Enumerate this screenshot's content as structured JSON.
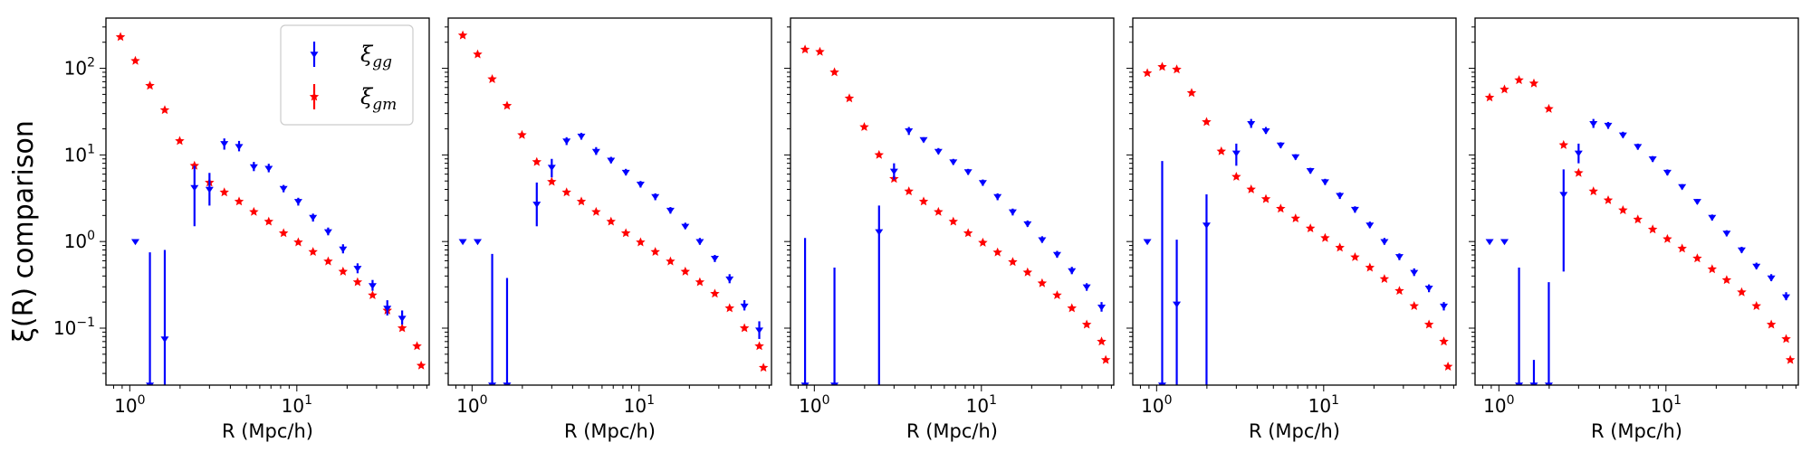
{
  "ylabel": "ξ(R) comparison",
  "colors": {
    "gg": "#0000ff",
    "gm": "#ff0000"
  },
  "chart_data": {
    "type": "scatter",
    "xscale": "log",
    "yscale": "log",
    "xlim": [
      0.72,
      62
    ],
    "ylim": [
      0.022,
      380
    ],
    "xticks": [
      {
        "value": 1,
        "base": "10",
        "exp": "0"
      },
      {
        "value": 10,
        "base": "10",
        "exp": "1"
      }
    ],
    "yticks": [
      {
        "value": 0.1,
        "base": "10",
        "exp": "−1"
      },
      {
        "value": 1,
        "base": "10",
        "exp": "0"
      },
      {
        "value": 10,
        "base": "10",
        "exp": "1"
      },
      {
        "value": 100,
        "base": "10",
        "exp": "2"
      }
    ],
    "xlabel": "R  (Mpc/h)",
    "legend": {
      "position": "upper-right of first panel",
      "entries": [
        {
          "key": "gg",
          "sym": "ξ",
          "sub": "gg"
        },
        {
          "key": "gm",
          "sym": "ξ",
          "sub": "gm"
        }
      ]
    },
    "panels": [
      {
        "xlabel": "R  (Mpc/h)",
        "gm": [
          [
            0.88,
            230
          ],
          [
            1.08,
            122
          ],
          [
            1.32,
            63
          ],
          [
            1.62,
            33
          ],
          [
            1.99,
            14.5
          ],
          [
            2.44,
            7.5
          ],
          [
            3.0,
            4.8
          ],
          [
            3.68,
            3.7
          ],
          [
            4.51,
            2.9
          ],
          [
            5.53,
            2.2
          ],
          [
            6.79,
            1.7
          ],
          [
            8.33,
            1.25
          ],
          [
            10.2,
            0.98
          ],
          [
            12.5,
            0.76
          ],
          [
            15.4,
            0.59
          ],
          [
            18.9,
            0.45
          ],
          [
            23.1,
            0.34
          ],
          [
            28.4,
            0.24
          ],
          [
            34.8,
            0.16
          ],
          [
            42.7,
            0.1
          ],
          [
            52.4,
            0.062
          ],
          [
            55.5,
            0.037
          ]
        ],
        "gg": [
          [
            1.08,
            1.0,
            1.0,
            1.0
          ],
          [
            1.32,
            0.022,
            0.022,
            0.75
          ],
          [
            1.62,
            0.075,
            0.022,
            0.8
          ],
          [
            2.44,
            4.2,
            1.5,
            7.5
          ],
          [
            3.0,
            4.0,
            2.6,
            6.2
          ],
          [
            3.68,
            13.5,
            11.5,
            15.5
          ],
          [
            4.51,
            12.5,
            11,
            14.5
          ],
          [
            5.53,
            7.3,
            6.5,
            8.3
          ],
          [
            6.79,
            7.0,
            6.3,
            7.9
          ],
          [
            8.33,
            4.1,
            3.7,
            4.5
          ],
          [
            10.2,
            2.9,
            2.6,
            3.2
          ],
          [
            12.5,
            1.9,
            1.7,
            2.1
          ],
          [
            15.4,
            1.3,
            1.18,
            1.45
          ],
          [
            18.9,
            0.82,
            0.73,
            0.93
          ],
          [
            23.1,
            0.49,
            0.43,
            0.56
          ],
          [
            28.4,
            0.31,
            0.27,
            0.36
          ],
          [
            34.8,
            0.17,
            0.14,
            0.21
          ],
          [
            42.7,
            0.13,
            0.11,
            0.16
          ]
        ]
      },
      {
        "xlabel": "R  (Mpc/h)",
        "gm": [
          [
            0.88,
            240
          ],
          [
            1.08,
            145
          ],
          [
            1.32,
            75
          ],
          [
            1.62,
            37
          ],
          [
            1.99,
            17
          ],
          [
            2.44,
            8.3
          ],
          [
            3.0,
            4.9
          ],
          [
            3.68,
            3.7
          ],
          [
            4.51,
            2.9
          ],
          [
            5.53,
            2.2
          ],
          [
            6.79,
            1.7
          ],
          [
            8.33,
            1.25
          ],
          [
            10.2,
            0.98
          ],
          [
            12.5,
            0.76
          ],
          [
            15.4,
            0.59
          ],
          [
            18.9,
            0.45
          ],
          [
            23.1,
            0.34
          ],
          [
            28.4,
            0.25
          ],
          [
            34.8,
            0.17
          ],
          [
            42.7,
            0.1
          ],
          [
            52.4,
            0.062
          ],
          [
            55.5,
            0.035
          ]
        ],
        "gg": [
          [
            0.88,
            1.0,
            1.0,
            1.0
          ],
          [
            1.08,
            1.0,
            1.0,
            1.0
          ],
          [
            1.32,
            0.022,
            0.022,
            0.72
          ],
          [
            1.62,
            0.022,
            0.022,
            0.38
          ],
          [
            2.44,
            2.7,
            1.5,
            4.8
          ],
          [
            3.0,
            7.2,
            5.5,
            9.0
          ],
          [
            3.68,
            14.5,
            13,
            16
          ],
          [
            4.51,
            16.5,
            15,
            18
          ],
          [
            5.53,
            11,
            10,
            12.3
          ],
          [
            6.79,
            8.7,
            8,
            9.5
          ],
          [
            8.33,
            6.3,
            5.8,
            6.9
          ],
          [
            10.2,
            4.6,
            4.2,
            5.0
          ],
          [
            12.5,
            3.3,
            3.0,
            3.6
          ],
          [
            15.4,
            2.3,
            2.1,
            2.5
          ],
          [
            18.9,
            1.5,
            1.4,
            1.65
          ],
          [
            23.1,
            1.0,
            0.92,
            1.1
          ],
          [
            28.4,
            0.64,
            0.58,
            0.7
          ],
          [
            34.8,
            0.37,
            0.33,
            0.42
          ],
          [
            42.7,
            0.18,
            0.16,
            0.21
          ],
          [
            52.4,
            0.095,
            0.075,
            0.12
          ]
        ]
      },
      {
        "xlabel": "R  (Mpc/h)",
        "gm": [
          [
            0.88,
            165
          ],
          [
            1.08,
            155
          ],
          [
            1.32,
            90
          ],
          [
            1.62,
            45
          ],
          [
            1.99,
            21
          ],
          [
            2.44,
            10
          ],
          [
            3.0,
            5.3
          ],
          [
            3.68,
            3.8
          ],
          [
            4.51,
            2.9
          ],
          [
            5.53,
            2.2
          ],
          [
            6.79,
            1.7
          ],
          [
            8.33,
            1.25
          ],
          [
            10.2,
            0.97
          ],
          [
            12.5,
            0.75
          ],
          [
            15.4,
            0.58
          ],
          [
            18.9,
            0.44
          ],
          [
            23.1,
            0.33
          ],
          [
            28.4,
            0.24
          ],
          [
            34.8,
            0.17
          ],
          [
            42.7,
            0.11
          ],
          [
            52.4,
            0.07
          ],
          [
            55.5,
            0.043
          ]
        ],
        "gg": [
          [
            0.88,
            0.022,
            0.022,
            1.1
          ],
          [
            1.32,
            0.022,
            0.022,
            0.5
          ],
          [
            2.44,
            1.3,
            0.022,
            2.6
          ],
          [
            3.0,
            6.5,
            5.2,
            8.0
          ],
          [
            3.68,
            19,
            17,
            21
          ],
          [
            4.51,
            15,
            14,
            16
          ],
          [
            5.53,
            11,
            10.2,
            12
          ],
          [
            6.79,
            8.3,
            7.7,
            9.0
          ],
          [
            8.33,
            6.4,
            5.9,
            6.9
          ],
          [
            10.2,
            4.8,
            4.4,
            5.2
          ],
          [
            12.5,
            3.3,
            3.0,
            3.6
          ],
          [
            15.4,
            2.2,
            2.0,
            2.4
          ],
          [
            18.9,
            1.6,
            1.48,
            1.75
          ],
          [
            23.1,
            1.05,
            0.97,
            1.15
          ],
          [
            28.4,
            0.71,
            0.65,
            0.78
          ],
          [
            34.8,
            0.46,
            0.42,
            0.51
          ],
          [
            42.7,
            0.3,
            0.27,
            0.33
          ],
          [
            52.4,
            0.175,
            0.155,
            0.2
          ]
        ]
      },
      {
        "xlabel": "R  (Mpc/h)",
        "gm": [
          [
            0.88,
            88
          ],
          [
            1.08,
            104
          ],
          [
            1.32,
            97
          ],
          [
            1.62,
            52
          ],
          [
            1.99,
            24
          ],
          [
            2.44,
            11
          ],
          [
            3.0,
            5.6
          ],
          [
            3.68,
            4.0
          ],
          [
            4.51,
            3.1
          ],
          [
            5.53,
            2.4
          ],
          [
            6.79,
            1.85
          ],
          [
            8.33,
            1.42
          ],
          [
            10.2,
            1.1
          ],
          [
            12.5,
            0.85
          ],
          [
            15.4,
            0.66
          ],
          [
            18.9,
            0.5
          ],
          [
            23.1,
            0.37
          ],
          [
            28.4,
            0.27
          ],
          [
            34.8,
            0.18
          ],
          [
            42.7,
            0.11
          ],
          [
            52.4,
            0.07
          ],
          [
            55.5,
            0.036
          ]
        ],
        "gg": [
          [
            0.88,
            1.0,
            1.0,
            1.0
          ],
          [
            1.08,
            0.022,
            0.022,
            8.5
          ],
          [
            1.32,
            0.19,
            0.022,
            1.05
          ],
          [
            1.99,
            1.55,
            0.022,
            3.5
          ],
          [
            3.0,
            10.5,
            7.5,
            13.5
          ],
          [
            3.68,
            23,
            20.5,
            26
          ],
          [
            4.51,
            19,
            17.5,
            21
          ],
          [
            5.53,
            13,
            12,
            14
          ],
          [
            6.79,
            9.5,
            8.8,
            10.2
          ],
          [
            8.33,
            6.6,
            6.1,
            7.1
          ],
          [
            10.2,
            4.9,
            4.5,
            5.3
          ],
          [
            12.5,
            3.4,
            3.1,
            3.7
          ],
          [
            15.4,
            2.35,
            2.15,
            2.55
          ],
          [
            18.9,
            1.55,
            1.43,
            1.7
          ],
          [
            23.1,
            1.0,
            0.92,
            1.1
          ],
          [
            28.4,
            0.67,
            0.61,
            0.73
          ],
          [
            34.8,
            0.44,
            0.4,
            0.49
          ],
          [
            42.7,
            0.29,
            0.26,
            0.32
          ],
          [
            52.4,
            0.18,
            0.16,
            0.2
          ]
        ]
      },
      {
        "xlabel": "R  (Mpc/h)",
        "gm": [
          [
            0.88,
            46
          ],
          [
            1.08,
            57
          ],
          [
            1.32,
            73
          ],
          [
            1.62,
            67
          ],
          [
            1.99,
            34
          ],
          [
            2.44,
            13
          ],
          [
            3.0,
            6.2
          ],
          [
            3.68,
            3.8
          ],
          [
            4.51,
            3.0
          ],
          [
            5.53,
            2.3
          ],
          [
            6.79,
            1.8
          ],
          [
            8.33,
            1.38
          ],
          [
            10.2,
            1.07
          ],
          [
            12.5,
            0.83
          ],
          [
            15.4,
            0.64
          ],
          [
            18.9,
            0.48
          ],
          [
            23.1,
            0.36
          ],
          [
            28.4,
            0.26
          ],
          [
            34.8,
            0.18
          ],
          [
            42.7,
            0.11
          ],
          [
            52.4,
            0.075
          ],
          [
            55.5,
            0.043
          ]
        ],
        "gg": [
          [
            0.88,
            1.0,
            1.0,
            1.0
          ],
          [
            1.08,
            1.0,
            1.0,
            1.0
          ],
          [
            1.32,
            0.022,
            0.022,
            0.5
          ],
          [
            1.62,
            0.022,
            0.022,
            0.043
          ],
          [
            1.99,
            0.022,
            0.022,
            0.34
          ],
          [
            2.44,
            3.5,
            0.45,
            6.8
          ],
          [
            3.0,
            10.5,
            8,
            13.5
          ],
          [
            3.68,
            23,
            20.5,
            26
          ],
          [
            4.51,
            22,
            20,
            24
          ],
          [
            5.53,
            17,
            15.8,
            18.5
          ],
          [
            6.79,
            12.5,
            11.5,
            13.5
          ],
          [
            8.33,
            9.0,
            8.3,
            9.7
          ],
          [
            10.2,
            6.3,
            5.8,
            6.8
          ],
          [
            12.5,
            4.3,
            4.0,
            4.6
          ],
          [
            15.4,
            2.9,
            2.7,
            3.1
          ],
          [
            18.9,
            1.9,
            1.75,
            2.05
          ],
          [
            23.1,
            1.25,
            1.15,
            1.35
          ],
          [
            28.4,
            0.8,
            0.74,
            0.87
          ],
          [
            34.8,
            0.52,
            0.48,
            0.57
          ],
          [
            42.7,
            0.38,
            0.35,
            0.42
          ],
          [
            52.4,
            0.23,
            0.21,
            0.26
          ]
        ]
      }
    ]
  }
}
